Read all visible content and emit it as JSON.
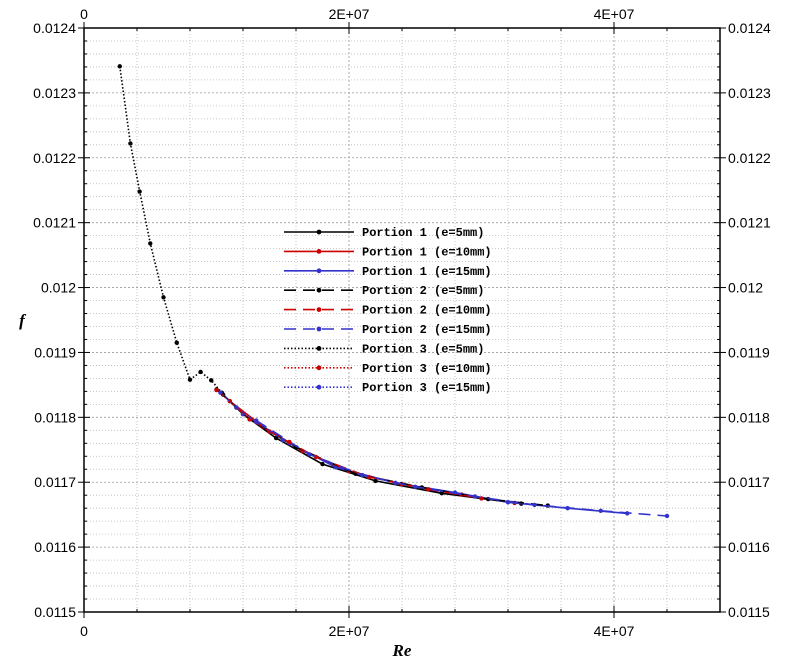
{
  "chart_data": {
    "type": "line",
    "xlabel": "Re",
    "ylabel": "f",
    "xlim": [
      0,
      48000000
    ],
    "ylim": [
      0.0115,
      0.0124
    ],
    "x_ticks": [
      {
        "value": 0,
        "label": "0"
      },
      {
        "value": 20000000,
        "label": "2E+07"
      },
      {
        "value": 40000000,
        "label": "4E+07"
      }
    ],
    "x_ticks_top": [
      {
        "value": 0,
        "label": "0"
      },
      {
        "value": 20000000,
        "label": "2E+07"
      },
      {
        "value": 40000000,
        "label": "4E+07"
      }
    ],
    "y_ticks": [
      {
        "value": 0.0115,
        "label": "0.0115"
      },
      {
        "value": 0.0116,
        "label": "0.0116"
      },
      {
        "value": 0.0117,
        "label": "0.0117"
      },
      {
        "value": 0.0118,
        "label": "0.0118"
      },
      {
        "value": 0.0119,
        "label": "0.0119"
      },
      {
        "value": 0.012,
        "label": "0.012"
      },
      {
        "value": 0.0121,
        "label": "0.0121"
      },
      {
        "value": 0.0122,
        "label": "0.0122"
      },
      {
        "value": 0.0123,
        "label": "0.0123"
      },
      {
        "value": 0.0124,
        "label": "0.0124"
      }
    ],
    "y_ticks_right": [
      {
        "value": 0.0115,
        "label": "0.0115"
      },
      {
        "value": 0.0116,
        "label": "0.0116"
      },
      {
        "value": 0.0117,
        "label": "0.0117"
      },
      {
        "value": 0.0118,
        "label": "0.0118"
      },
      {
        "value": 0.0119,
        "label": "0.0119"
      },
      {
        "value": 0.012,
        "label": "0.012"
      },
      {
        "value": 0.0121,
        "label": "0.0121"
      },
      {
        "value": 0.0122,
        "label": "0.0122"
      },
      {
        "value": 0.0123,
        "label": "0.0123"
      },
      {
        "value": 0.0124,
        "label": "0.0124"
      }
    ],
    "grid": true,
    "legend_position": "center",
    "series": [
      {
        "name": "Portion 1 (e=5mm)",
        "color": "#000000",
        "dash": "solid",
        "x": [
          10500000,
          12000000,
          14500000,
          18000000,
          22000000,
          27000000,
          33000000
        ],
        "y": [
          0.011835,
          0.011805,
          0.011768,
          0.011728,
          0.011702,
          0.011683,
          0.011667
        ]
      },
      {
        "name": "Portion 1 (e=10mm)",
        "color": "#cc0000",
        "dash": "solid",
        "x": [
          11000000,
          13500000,
          16500000,
          20000000,
          24000000,
          28500000,
          32500000
        ],
        "y": [
          0.011825,
          0.011786,
          0.011748,
          0.011717,
          0.011697,
          0.011681,
          0.011668
        ]
      },
      {
        "name": "Portion 1 (e=15mm)",
        "color": "#3333cc",
        "dash": "solid",
        "x": [
          12000000,
          15500000,
          19000000,
          23500000,
          28000000,
          32000000,
          36500000,
          41000000
        ],
        "y": [
          0.011805,
          0.01176,
          0.011723,
          0.011699,
          0.011684,
          0.011669,
          0.01166,
          0.011652
        ]
      },
      {
        "name": "Portion 2 (e=5mm)",
        "color": "#000000",
        "dash": "long-dash",
        "x": [
          10000000,
          12500000,
          16000000,
          20500000,
          25500000,
          30500000,
          35000000
        ],
        "y": [
          0.011843,
          0.011797,
          0.011754,
          0.011713,
          0.011692,
          0.011674,
          0.011664
        ]
      },
      {
        "name": "Portion 2 (e=10mm)",
        "color": "#cc0000",
        "dash": "long-dash",
        "x": [
          11500000,
          14000000,
          17500000,
          21500000,
          26000000,
          30000000
        ],
        "y": [
          0.011815,
          0.011778,
          0.011739,
          0.011708,
          0.011689,
          0.011675
        ]
      },
      {
        "name": "Portion 2 (e=15mm)",
        "color": "#3333cc",
        "dash": "long-dash",
        "x": [
          13000000,
          17000000,
          21000000,
          25000000,
          29500000,
          34000000,
          39000000,
          44000000
        ],
        "y": [
          0.011795,
          0.011743,
          0.011711,
          0.011693,
          0.011678,
          0.011665,
          0.011656,
          0.011648
        ]
      },
      {
        "name": "Portion 3 (e=5mm)",
        "color": "#000000",
        "dash": "dotted",
        "x": [
          2700000,
          3500000,
          4200000,
          5000000,
          6000000,
          7000000,
          8000000,
          8800000,
          9600000,
          10400000
        ],
        "y": [
          0.012341,
          0.012222,
          0.012148,
          0.012068,
          0.011985,
          0.011915,
          0.011858,
          0.01187,
          0.011857,
          0.011838
        ]
      },
      {
        "name": "Portion 3 (e=10mm)",
        "color": "#cc0000",
        "dash": "dotted",
        "x": [
          10000000,
          11000000,
          12500000,
          14000000,
          15500000
        ],
        "y": [
          0.011842,
          0.011825,
          0.011797,
          0.011778,
          0.011762
        ]
      },
      {
        "name": "Portion 3 (e=15mm)",
        "color": "#3333cc",
        "dash": "dotted",
        "x": [
          10300000,
          11500000,
          13000000,
          15000000
        ],
        "y": [
          0.011838,
          0.011815,
          0.011793,
          0.011765
        ]
      }
    ]
  }
}
